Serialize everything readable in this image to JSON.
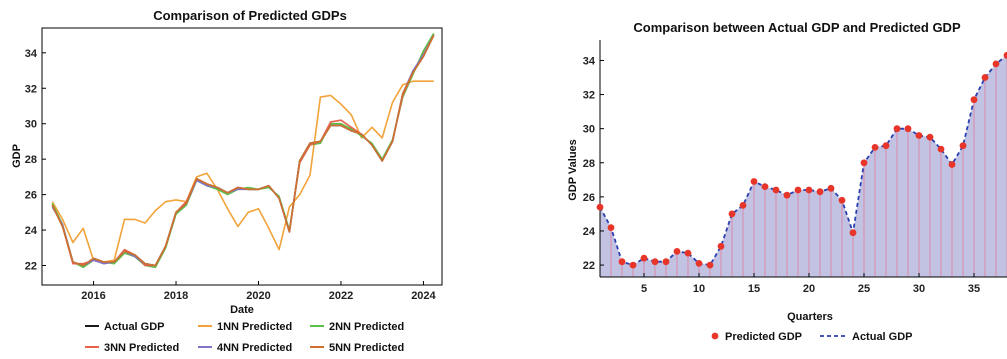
{
  "chart_data": [
    {
      "type": "line",
      "title": "Comparison of Predicted GDPs",
      "xlabel": "Date",
      "ylabel": "GDP",
      "xlim": [
        2014.75,
        2024.45
      ],
      "ylim": [
        20.9,
        35.4
      ],
      "x_ticks": [
        2016,
        2018,
        2020,
        2022,
        2024
      ],
      "y_ticks": [
        22,
        24,
        26,
        28,
        30,
        32,
        34
      ],
      "grid": false,
      "legend_position": "bottom",
      "x": [
        2015.0,
        2015.25,
        2015.5,
        2015.75,
        2016.0,
        2016.25,
        2016.5,
        2016.75,
        2017.0,
        2017.25,
        2017.5,
        2017.75,
        2018.0,
        2018.25,
        2018.5,
        2018.75,
        2019.0,
        2019.25,
        2019.5,
        2019.75,
        2020.0,
        2020.25,
        2020.5,
        2020.75,
        2021.0,
        2021.25,
        2021.5,
        2021.75,
        2022.0,
        2022.25,
        2022.5,
        2022.75,
        2023.0,
        2023.25,
        2023.5,
        2023.75,
        2024.0,
        2024.25
      ],
      "series": [
        {
          "name": "Actual GDP",
          "color": "#1a1a1a",
          "values": [
            25.4,
            24.2,
            22.2,
            22.0,
            22.4,
            22.2,
            22.2,
            22.8,
            22.6,
            22.1,
            22.0,
            23.1,
            25.0,
            25.5,
            26.9,
            26.6,
            26.4,
            26.1,
            26.4,
            26.3,
            26.3,
            26.5,
            25.8,
            23.9,
            27.9,
            28.9,
            29.0,
            29.9,
            29.9,
            29.6,
            29.4,
            28.8,
            27.9,
            29.0,
            31.7,
            32.9,
            33.8,
            35.0
          ]
        },
        {
          "name": "1NN Predicted",
          "color": "#f2a33a",
          "values": [
            25.6,
            24.6,
            23.3,
            24.1,
            22.3,
            22.2,
            22.3,
            24.6,
            24.6,
            24.4,
            25.1,
            25.6,
            25.7,
            25.6,
            27.0,
            27.2,
            26.3,
            25.2,
            24.2,
            25.0,
            25.2,
            24.1,
            22.9,
            25.3,
            26.0,
            27.1,
            31.5,
            31.6,
            31.1,
            30.5,
            29.2,
            29.8,
            29.2,
            31.2,
            32.2,
            32.4,
            32.4,
            32.4
          ]
        },
        {
          "name": "2NN Predicted",
          "color": "#5cbf4a",
          "values": [
            25.5,
            24.3,
            22.2,
            21.9,
            22.3,
            22.2,
            22.1,
            22.7,
            22.5,
            22.0,
            21.9,
            23.0,
            24.9,
            25.4,
            26.8,
            26.5,
            26.3,
            26.0,
            26.3,
            26.4,
            26.3,
            26.4,
            25.9,
            24.0,
            27.8,
            28.8,
            28.9,
            30.0,
            30.0,
            29.7,
            29.3,
            28.9,
            28.0,
            29.1,
            31.5,
            32.8,
            34.1,
            35.1
          ]
        },
        {
          "name": "3NN Predicted",
          "color": "#e8614a",
          "values": [
            25.4,
            24.2,
            22.1,
            22.1,
            22.3,
            22.2,
            22.2,
            22.9,
            22.6,
            22.0,
            22.0,
            23.1,
            25.0,
            25.6,
            26.9,
            26.6,
            26.4,
            26.1,
            26.4,
            26.3,
            26.3,
            26.5,
            25.8,
            23.9,
            27.8,
            28.8,
            29.0,
            30.1,
            30.2,
            29.8,
            29.4,
            28.8,
            27.9,
            29.0,
            31.6,
            32.9,
            33.9,
            35.0
          ]
        },
        {
          "name": "4NN Predicted",
          "color": "#7d74c7",
          "values": [
            25.3,
            24.3,
            22.2,
            22.0,
            22.3,
            22.1,
            22.2,
            22.8,
            22.5,
            22.1,
            22.0,
            23.1,
            25.0,
            25.5,
            26.8,
            26.5,
            26.4,
            26.1,
            26.3,
            26.3,
            26.3,
            26.5,
            25.8,
            23.9,
            27.9,
            28.9,
            29.0,
            29.9,
            29.9,
            29.6,
            29.4,
            28.8,
            27.9,
            29.0,
            31.7,
            33.0,
            33.9,
            35.0
          ]
        },
        {
          "name": "5NN Predicted",
          "color": "#d0702a",
          "values": [
            25.4,
            24.2,
            22.2,
            22.0,
            22.4,
            22.2,
            22.2,
            22.8,
            22.6,
            22.1,
            22.0,
            23.1,
            25.0,
            25.5,
            26.9,
            26.6,
            26.4,
            26.1,
            26.4,
            26.3,
            26.3,
            26.5,
            25.8,
            23.9,
            27.9,
            28.9,
            29.0,
            29.9,
            29.9,
            29.6,
            29.4,
            28.8,
            27.9,
            29.0,
            31.7,
            32.9,
            33.8,
            35.0
          ]
        }
      ]
    },
    {
      "type": "area",
      "title": "Comparison between Actual GDP and Predicted GDP",
      "xlabel": "Quarters",
      "ylabel": "GDP Values",
      "xlim": [
        1,
        38
      ],
      "ylim": [
        21.3,
        35.2
      ],
      "x_ticks": [
        5,
        10,
        15,
        20,
        25,
        30,
        35
      ],
      "y_ticks": [
        22,
        24,
        26,
        28,
        30,
        32,
        34
      ],
      "grid": false,
      "legend_position": "bottom",
      "fill_color": "#b7b7de",
      "stem_color": "#e07a9a",
      "series": [
        {
          "name": "Predicted GDP",
          "color": "#e8352a",
          "values": [
            25.4,
            24.2,
            22.2,
            22.0,
            22.4,
            22.2,
            22.2,
            22.8,
            22.7,
            22.1,
            22.0,
            23.1,
            25.0,
            25.5,
            26.9,
            26.6,
            26.4,
            26.1,
            26.4,
            26.4,
            26.3,
            26.5,
            25.8,
            23.9,
            28.0,
            28.9,
            29.0,
            30.0,
            30.0,
            29.6,
            29.5,
            28.8,
            27.9,
            29.0,
            31.7,
            33.0,
            33.8,
            34.3
          ]
        },
        {
          "name": "Actual GDP",
          "color": "#2a3fb0",
          "values": [
            25.4,
            24.2,
            22.2,
            22.0,
            22.4,
            22.2,
            22.2,
            22.8,
            22.7,
            22.1,
            22.0,
            23.1,
            25.0,
            25.5,
            26.9,
            26.6,
            26.4,
            26.1,
            26.4,
            26.4,
            26.3,
            26.5,
            25.8,
            23.9,
            28.0,
            28.9,
            29.0,
            30.0,
            30.0,
            29.6,
            29.5,
            28.8,
            27.9,
            29.0,
            31.7,
            33.0,
            33.8,
            34.3
          ]
        }
      ]
    }
  ]
}
